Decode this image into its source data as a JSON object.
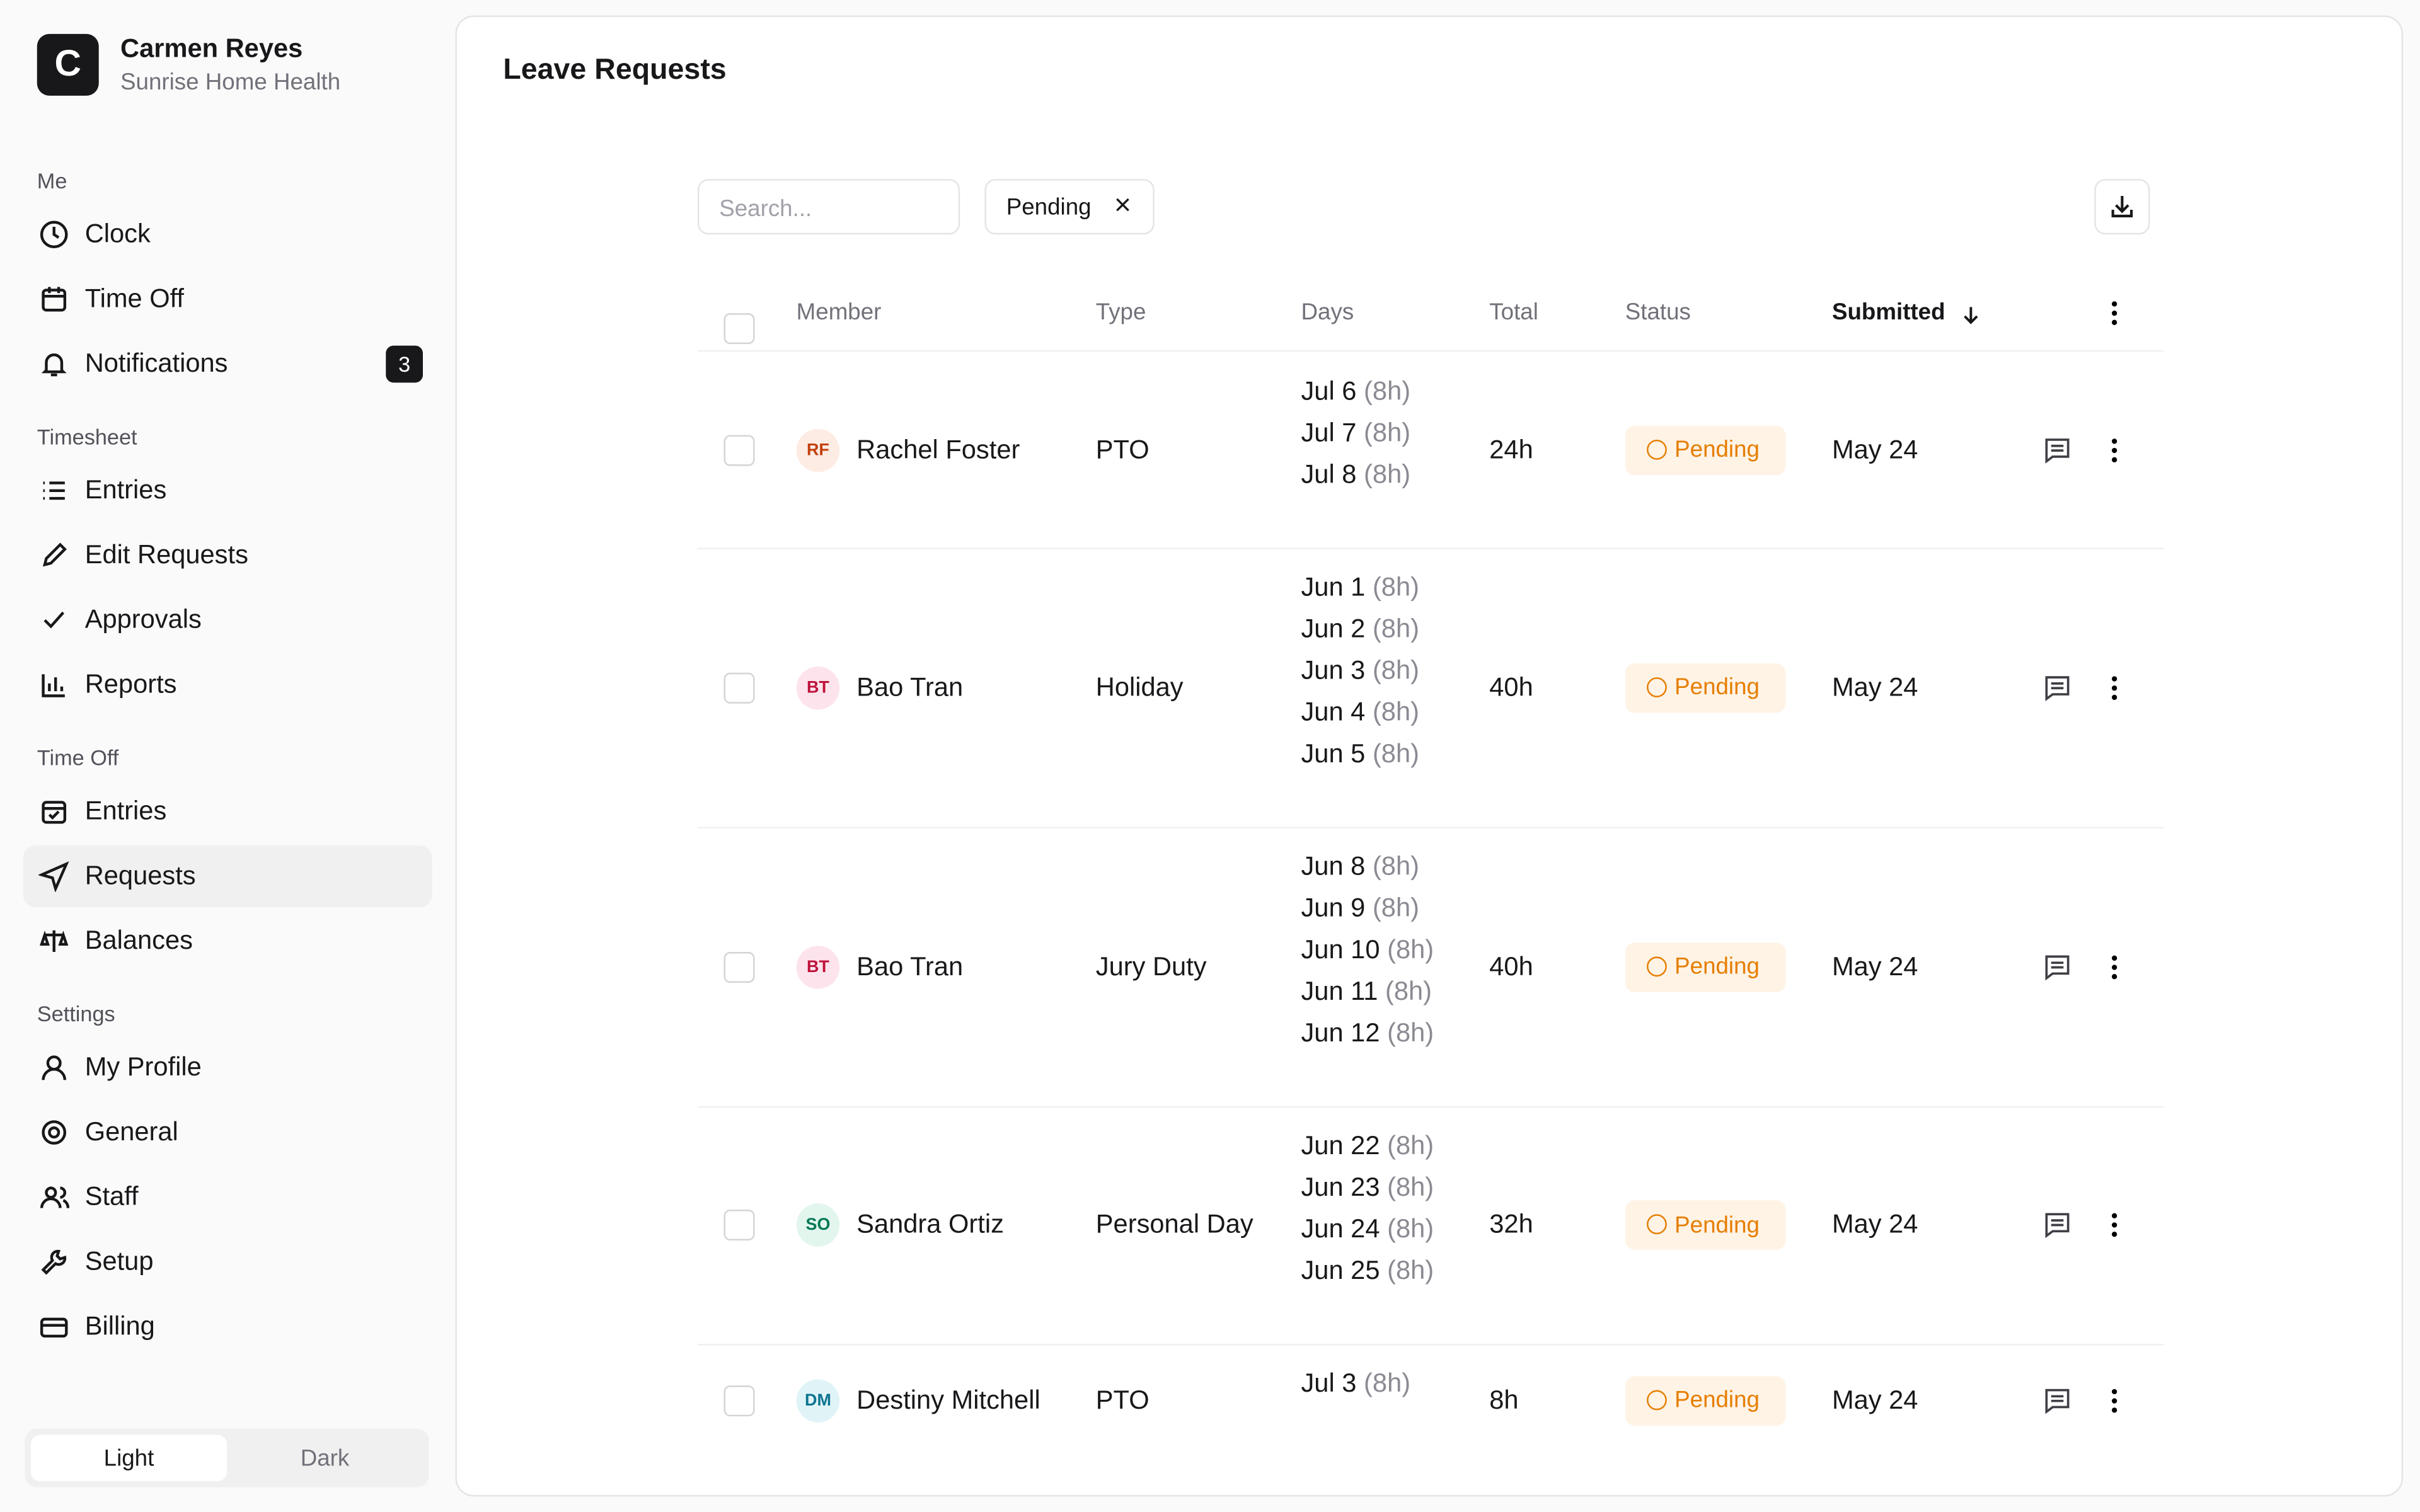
{
  "sidebar": {
    "logo": "C",
    "user": "Carmen Reyes",
    "org": "Sunrise Home Health",
    "sections": [
      {
        "title": "Me",
        "items": [
          {
            "label": "Clock"
          },
          {
            "label": "Time Off"
          },
          {
            "label": "Notifications",
            "badge": "3"
          }
        ]
      },
      {
        "title": "Timesheet",
        "items": [
          {
            "label": "Entries"
          },
          {
            "label": "Edit Requests"
          },
          {
            "label": "Approvals"
          },
          {
            "label": "Reports"
          }
        ]
      },
      {
        "title": "Time Off",
        "items": [
          {
            "label": "Entries"
          },
          {
            "label": "Requests"
          },
          {
            "label": "Balances"
          }
        ]
      },
      {
        "title": "Settings",
        "items": [
          {
            "label": "My Profile"
          },
          {
            "label": "General"
          },
          {
            "label": "Staff"
          },
          {
            "label": "Setup"
          },
          {
            "label": "Billing"
          }
        ]
      }
    ],
    "theme": [
      "Light",
      "Dark"
    ]
  },
  "header": {
    "title": "Leave Requests",
    "search_placeholder": "Search...",
    "filter": "Pending"
  },
  "table": {
    "columns": [
      "Member",
      "Type",
      "Days",
      "Total",
      "Status",
      "Submitted"
    ],
    "rows": [
      {
        "initials": "RF",
        "name": "Rachel Foster",
        "type": "PTO",
        "days": [
          [
            "Jul 6",
            "(8h)"
          ],
          [
            "Jul 7",
            "(8h)"
          ],
          [
            "Jul 8",
            "(8h)"
          ]
        ],
        "total": "24h",
        "status": "Pending",
        "submitted": "May 24"
      },
      {
        "initials": "BT",
        "name": "Bao Tran",
        "type": "Holiday",
        "days": [
          [
            "Jun 1",
            "(8h)"
          ],
          [
            "Jun 2",
            "(8h)"
          ],
          [
            "Jun 3",
            "(8h)"
          ],
          [
            "Jun 4",
            "(8h)"
          ],
          [
            "Jun 5",
            "(8h)"
          ]
        ],
        "total": "40h",
        "status": "Pending",
        "submitted": "May 24"
      },
      {
        "initials": "BT",
        "name": "Bao Tran",
        "type": "Jury Duty",
        "days": [
          [
            "Jun 8",
            "(8h)"
          ],
          [
            "Jun 9",
            "(8h)"
          ],
          [
            "Jun 10",
            "(8h)"
          ],
          [
            "Jun 11",
            "(8h)"
          ],
          [
            "Jun 12",
            "(8h)"
          ]
        ],
        "total": "40h",
        "status": "Pending",
        "submitted": "May 24"
      },
      {
        "initials": "SO",
        "name": "Sandra Ortiz",
        "type": "Personal Day",
        "days": [
          [
            "Jun 22",
            "(8h)"
          ],
          [
            "Jun 23",
            "(8h)"
          ],
          [
            "Jun 24",
            "(8h)"
          ],
          [
            "Jun 25",
            "(8h)"
          ]
        ],
        "total": "32h",
        "status": "Pending",
        "submitted": "May 24"
      },
      {
        "initials": "DM",
        "name": "Destiny Mitchell",
        "type": "PTO",
        "days": [
          [
            "Jul 3",
            "(8h)"
          ]
        ],
        "total": "8h",
        "status": "Pending",
        "submitted": "May 24"
      }
    ]
  }
}
